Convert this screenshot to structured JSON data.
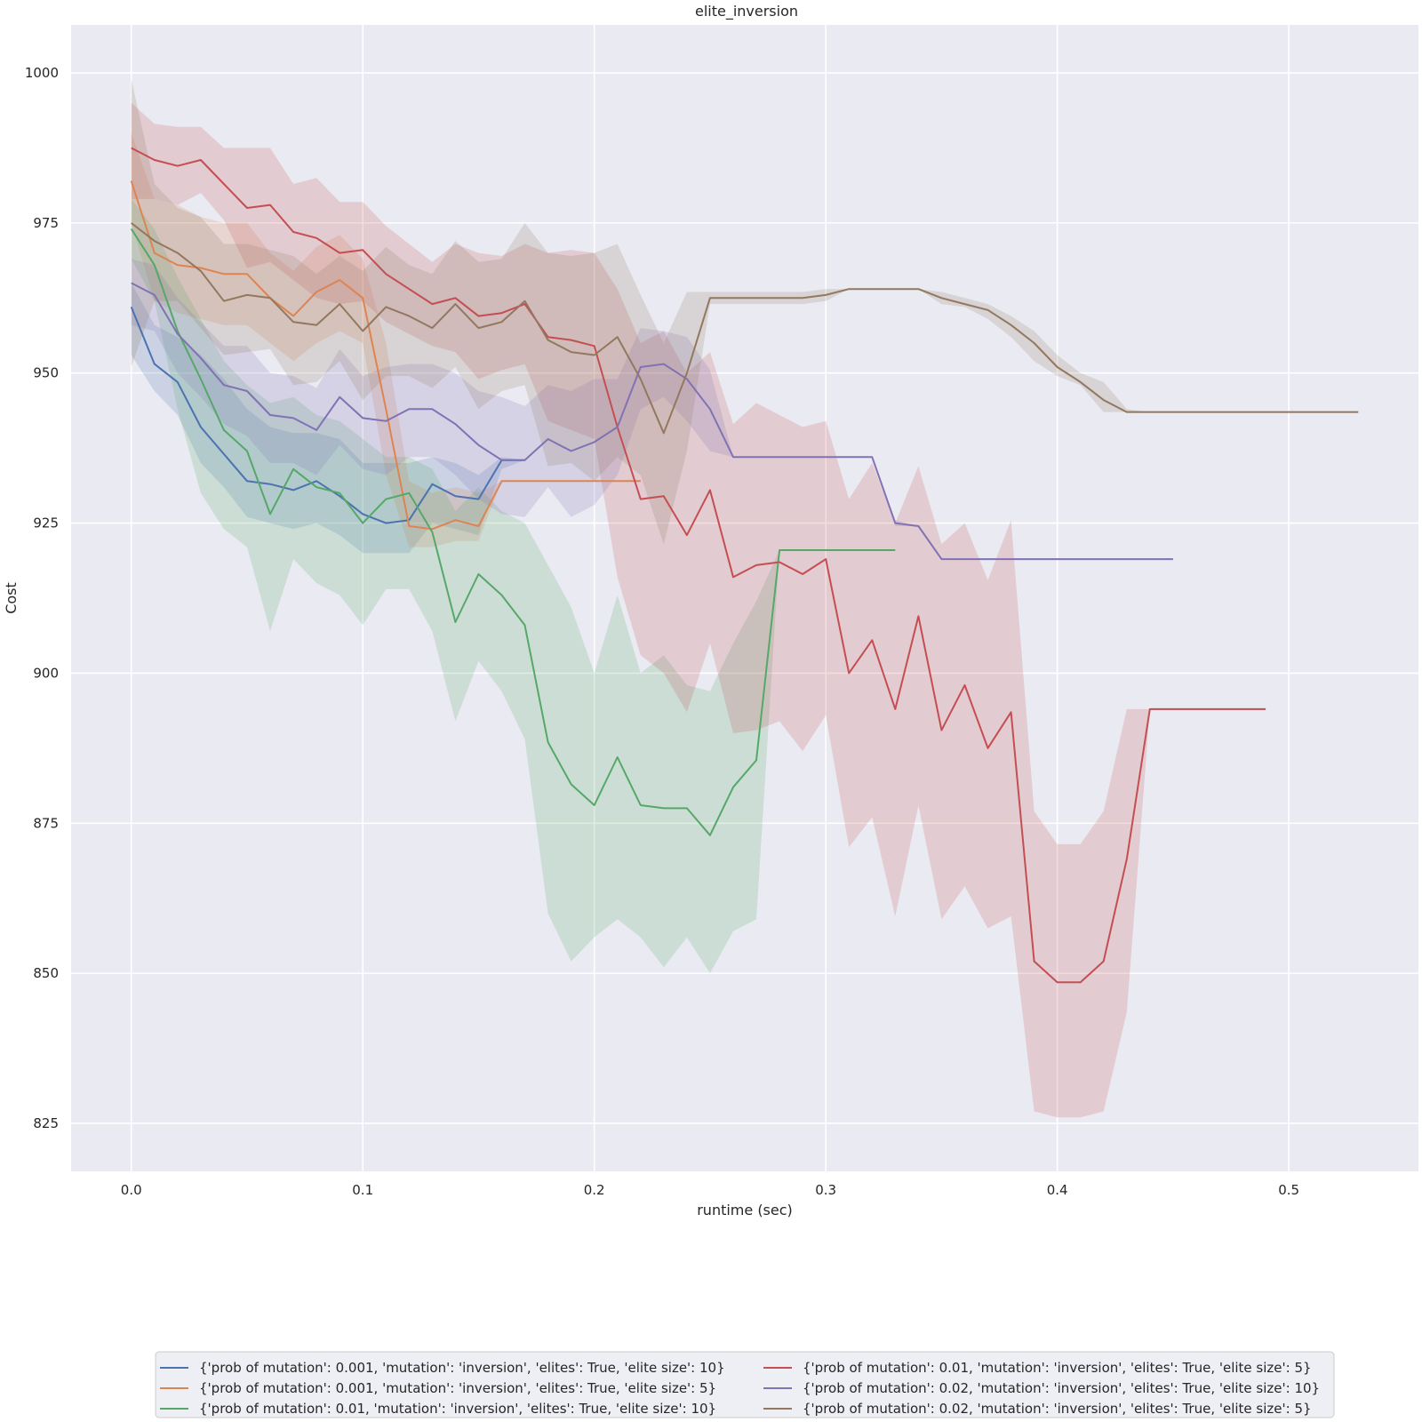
{
  "chart_data": {
    "type": "line",
    "title": "elite_inversion",
    "xlabel": "runtime (sec)",
    "ylabel": "Cost",
    "xlim": [
      -0.026,
      0.556
    ],
    "ylim": [
      817,
      1008
    ],
    "xticks": [
      0.0,
      0.1,
      0.2,
      0.3,
      0.4,
      0.5
    ],
    "xtick_labels": [
      "0.0",
      "0.1",
      "0.2",
      "0.3",
      "0.4",
      "0.5"
    ],
    "yticks": [
      825,
      850,
      875,
      900,
      925,
      950,
      975,
      1000
    ],
    "ytick_labels": [
      "825",
      "850",
      "875",
      "900",
      "925",
      "950",
      "975",
      "1000"
    ],
    "grid": true,
    "legend_position": "bottom-center",
    "series": [
      {
        "name": "{'prob of mutation': 0.001, 'mutation': 'inversion', 'elites': True, 'elite size': 10}",
        "color": "#4c72b0",
        "x": [
          0.0,
          0.01,
          0.02,
          0.03,
          0.04,
          0.05,
          0.06,
          0.07,
          0.08,
          0.09,
          0.1,
          0.11,
          0.12,
          0.13,
          0.14,
          0.15,
          0.16,
          0.17
        ],
        "y": [
          961,
          951.5,
          948.5,
          941,
          936.5,
          932,
          931.5,
          930.5,
          932,
          929.5,
          926.5,
          925,
          925.5,
          931.5,
          929.5,
          929,
          935.5,
          935.5
        ],
        "upper": [
          965,
          958,
          956,
          953,
          949,
          944,
          941,
          940,
          940,
          939,
          935,
          935,
          935,
          936,
          935,
          933,
          936,
          935.5
        ],
        "lower": [
          953,
          947,
          943,
          935,
          931,
          926,
          925,
          924,
          925,
          923,
          920,
          920,
          920,
          925,
          924,
          923,
          934,
          935.5
        ]
      },
      {
        "name": "{'prob of mutation': 0.001, 'mutation': 'inversion', 'elites': True, 'elite size': 5}",
        "color": "#dd8452",
        "x": [
          0.0,
          0.01,
          0.02,
          0.03,
          0.04,
          0.05,
          0.06,
          0.07,
          0.08,
          0.09,
          0.1,
          0.11,
          0.12,
          0.13,
          0.14,
          0.15,
          0.16,
          0.17,
          0.18,
          0.19,
          0.2,
          0.21,
          0.22
        ],
        "y": [
          982,
          970,
          968,
          967.5,
          966.5,
          966.5,
          962.5,
          959.5,
          963.5,
          965.5,
          962.5,
          944,
          924.5,
          924,
          925.5,
          924.5,
          932,
          932,
          932,
          932,
          932,
          932,
          932
        ],
        "upper": [
          990,
          979,
          978,
          976,
          975,
          975,
          970,
          967,
          971,
          973,
          969,
          955,
          932,
          930,
          931,
          930,
          932,
          932,
          932,
          932,
          932,
          932,
          932
        ],
        "lower": [
          975,
          962,
          960,
          959,
          958,
          958,
          955,
          952,
          955,
          957,
          955,
          933,
          921,
          921,
          922,
          922,
          932,
          932,
          932,
          932,
          932,
          932,
          932
        ]
      },
      {
        "name": "{'prob of mutation': 0.01, 'mutation': 'inversion', 'elites': True, 'elite size': 10}",
        "color": "#55a868",
        "x": [
          0.0,
          0.01,
          0.02,
          0.03,
          0.04,
          0.05,
          0.06,
          0.07,
          0.08,
          0.09,
          0.1,
          0.11,
          0.12,
          0.13,
          0.14,
          0.15,
          0.16,
          0.17,
          0.18,
          0.19,
          0.2,
          0.21,
          0.22,
          0.23,
          0.24,
          0.25,
          0.26,
          0.27,
          0.28,
          0.29,
          0.3,
          0.31,
          0.32,
          0.33
        ],
        "y": [
          974,
          968,
          957,
          949,
          940.5,
          937,
          926.5,
          934,
          931,
          930,
          925,
          929,
          930,
          923.5,
          908.5,
          916.5,
          913,
          908,
          888.5,
          881.5,
          878,
          886,
          878,
          877.5,
          877.5,
          873,
          881,
          885.5,
          920.5,
          920.5,
          920.5,
          920.5,
          920.5,
          920.5
        ],
        "upper": [
          979,
          974,
          966,
          959,
          952,
          948,
          945,
          946,
          943,
          942,
          939,
          936,
          936,
          934,
          927,
          931,
          927,
          925,
          918,
          911,
          900,
          913,
          900,
          903,
          898,
          897,
          905,
          912,
          920.5,
          920.5,
          920.5,
          920.5,
          920.5,
          920.5
        ],
        "lower": [
          969,
          962,
          944,
          930,
          924,
          921,
          907,
          919,
          915,
          913,
          908,
          914,
          914,
          907,
          892,
          902,
          897,
          889,
          860,
          852,
          856,
          859,
          856,
          851,
          856,
          850,
          857,
          859,
          920.5,
          920.5,
          920.5,
          920.5,
          920.5,
          920.5
        ]
      },
      {
        "name": "{'prob of mutation': 0.01, 'mutation': 'inversion', 'elites': True, 'elite size': 5}",
        "color": "#c44e52",
        "x": [
          0.0,
          0.01,
          0.02,
          0.03,
          0.04,
          0.05,
          0.06,
          0.07,
          0.08,
          0.09,
          0.1,
          0.11,
          0.12,
          0.13,
          0.14,
          0.15,
          0.16,
          0.17,
          0.18,
          0.19,
          0.2,
          0.21,
          0.22,
          0.23,
          0.24,
          0.25,
          0.26,
          0.27,
          0.28,
          0.29,
          0.3,
          0.31,
          0.32,
          0.33,
          0.34,
          0.35,
          0.36,
          0.37,
          0.38,
          0.39,
          0.4,
          0.41,
          0.42,
          0.43,
          0.44,
          0.45,
          0.46,
          0.47,
          0.48,
          0.49
        ],
        "y": [
          987.5,
          985.5,
          984.5,
          985.5,
          981.5,
          977.5,
          978,
          973.5,
          972.5,
          970,
          970.5,
          966.5,
          964,
          961.5,
          962.5,
          959.5,
          960,
          961.5,
          956,
          955.5,
          954.5,
          941,
          929,
          929.5,
          923,
          930.5,
          916,
          918,
          918.5,
          916.5,
          919,
          900,
          905.5,
          894,
          909.5,
          890.5,
          898,
          887.5,
          893.5,
          852,
          848.5,
          848.5,
          852,
          869,
          894,
          894,
          894,
          894,
          894,
          894
        ],
        "upper": [
          995,
          991.5,
          991,
          991,
          987.5,
          987.5,
          987.5,
          981.5,
          982.5,
          978.5,
          978.5,
          974.5,
          971.5,
          968.5,
          971.5,
          970,
          969.5,
          971.5,
          970,
          970.5,
          970,
          964,
          955,
          957,
          950,
          953.5,
          941.5,
          945,
          943,
          941,
          942,
          929,
          935,
          925,
          934.5,
          921.5,
          925,
          915.5,
          925.5,
          877,
          871.5,
          871.5,
          877,
          894,
          894,
          894,
          894,
          894,
          894,
          894
        ],
        "lower": [
          979,
          979,
          978,
          980,
          975.5,
          967.5,
          968.5,
          965.5,
          962.5,
          961.5,
          962,
          958.5,
          956.5,
          954.5,
          953.5,
          949,
          950.5,
          951.5,
          942,
          940.5,
          939,
          916,
          903,
          900,
          893.5,
          905,
          890,
          890.5,
          892,
          887,
          893,
          871,
          876,
          859.5,
          878,
          859,
          864.5,
          857.5,
          859.5,
          827,
          826,
          826,
          827,
          843.5,
          894,
          894,
          894,
          894,
          894,
          894
        ]
      },
      {
        "name": "{'prob of mutation': 0.02, 'mutation': 'inversion', 'elites': True, 'elite size': 10}",
        "color": "#8172b3",
        "x": [
          0.0,
          0.01,
          0.02,
          0.03,
          0.04,
          0.05,
          0.06,
          0.07,
          0.08,
          0.09,
          0.1,
          0.11,
          0.12,
          0.13,
          0.14,
          0.15,
          0.16,
          0.17,
          0.18,
          0.19,
          0.2,
          0.21,
          0.22,
          0.23,
          0.24,
          0.25,
          0.26,
          0.27,
          0.28,
          0.29,
          0.3,
          0.31,
          0.32,
          0.33,
          0.34,
          0.35,
          0.36,
          0.37,
          0.38,
          0.39,
          0.4,
          0.41,
          0.42,
          0.43,
          0.44,
          0.45
        ],
        "y": [
          965,
          963,
          956.5,
          952.5,
          948,
          947,
          943,
          942.5,
          940.5,
          946,
          942.5,
          942,
          944,
          944,
          941.5,
          938,
          935.5,
          935.5,
          939,
          937,
          938.5,
          941,
          951,
          951.5,
          949,
          944,
          936,
          936,
          936,
          936,
          936,
          936,
          936,
          925,
          924.5,
          919,
          919,
          919,
          919,
          919,
          919,
          919,
          919,
          919,
          919,
          919
        ],
        "upper": [
          969,
          968,
          962.5,
          958.5,
          954.5,
          954.5,
          950,
          949.5,
          947.5,
          954,
          949.5,
          951,
          951.5,
          951.5,
          950,
          947,
          946,
          944.5,
          948,
          947,
          949,
          949,
          957.5,
          957,
          956,
          950.5,
          936,
          936,
          936,
          936,
          936,
          936,
          936,
          925.5,
          924.5,
          919,
          919,
          919,
          919,
          919,
          919,
          919,
          919,
          919,
          919,
          919
        ],
        "lower": [
          958,
          957,
          950,
          946,
          941.5,
          939.5,
          935,
          935,
          933,
          938,
          934,
          933,
          936,
          936,
          933,
          929,
          926.5,
          926,
          931,
          926,
          928,
          933,
          944,
          946,
          942,
          937,
          936,
          936,
          936,
          936,
          936,
          936,
          936,
          924.5,
          924.5,
          919,
          919,
          919,
          919,
          919,
          919,
          919,
          919,
          919,
          919,
          919
        ]
      },
      {
        "name": "{'prob of mutation': 0.02, 'mutation': 'inversion', 'elites': True, 'elite size': 5}",
        "color": "#937860",
        "x": [
          0.0,
          0.01,
          0.02,
          0.03,
          0.04,
          0.05,
          0.06,
          0.07,
          0.08,
          0.09,
          0.1,
          0.11,
          0.12,
          0.13,
          0.14,
          0.15,
          0.16,
          0.17,
          0.18,
          0.19,
          0.2,
          0.21,
          0.22,
          0.23,
          0.24,
          0.25,
          0.26,
          0.27,
          0.28,
          0.29,
          0.3,
          0.31,
          0.32,
          0.33,
          0.34,
          0.35,
          0.36,
          0.37,
          0.38,
          0.39,
          0.4,
          0.41,
          0.42,
          0.43,
          0.44,
          0.45,
          0.46,
          0.47,
          0.48,
          0.49,
          0.5,
          0.51,
          0.52,
          0.53
        ],
        "y": [
          975,
          972,
          970,
          967,
          962,
          963,
          962.5,
          958.5,
          958,
          961.5,
          957,
          961,
          959.5,
          957.5,
          961.5,
          957.5,
          958.5,
          962,
          955.5,
          953.5,
          953,
          956,
          949,
          940,
          950,
          962.5,
          962.5,
          962.5,
          962.5,
          962.5,
          963,
          964,
          964,
          964,
          964,
          962.5,
          961.5,
          960.5,
          958,
          955,
          951,
          948.5,
          945.5,
          943.5,
          943.5,
          943.5,
          943.5,
          943.5,
          943.5,
          943.5,
          943.5,
          943.5,
          943.5,
          943.5
        ],
        "upper": [
          999,
          981.5,
          977.5,
          976,
          971.5,
          971.5,
          970.5,
          969.5,
          966.5,
          969.5,
          967,
          971,
          968,
          966.5,
          972,
          968.5,
          969,
          975,
          970,
          969.5,
          970,
          971.5,
          963,
          955,
          963.5,
          963.5,
          963.5,
          963.5,
          963.5,
          963.5,
          964,
          964,
          964,
          964,
          964,
          963.5,
          962.5,
          961.5,
          959.5,
          957,
          953,
          950,
          948.5,
          944,
          943.5,
          943.5,
          943.5,
          943.5,
          943.5,
          943.5,
          943.5,
          943.5,
          943.5,
          943.5
        ],
        "lower": [
          951,
          962,
          962,
          957.5,
          953,
          953.5,
          954,
          948,
          948.5,
          952,
          945.5,
          949.5,
          949.5,
          947.5,
          951,
          944,
          947,
          948,
          934.5,
          935,
          932,
          936,
          933,
          921.5,
          937,
          961.5,
          961.5,
          961.5,
          961.5,
          961.5,
          962,
          964,
          964,
          964,
          964,
          961.5,
          961,
          959,
          956,
          952,
          949.5,
          948,
          943.5,
          943.5,
          943.5,
          943.5,
          943.5,
          943.5,
          943.5,
          943.5,
          943.5,
          943.5,
          943.5,
          943.5
        ]
      }
    ]
  }
}
